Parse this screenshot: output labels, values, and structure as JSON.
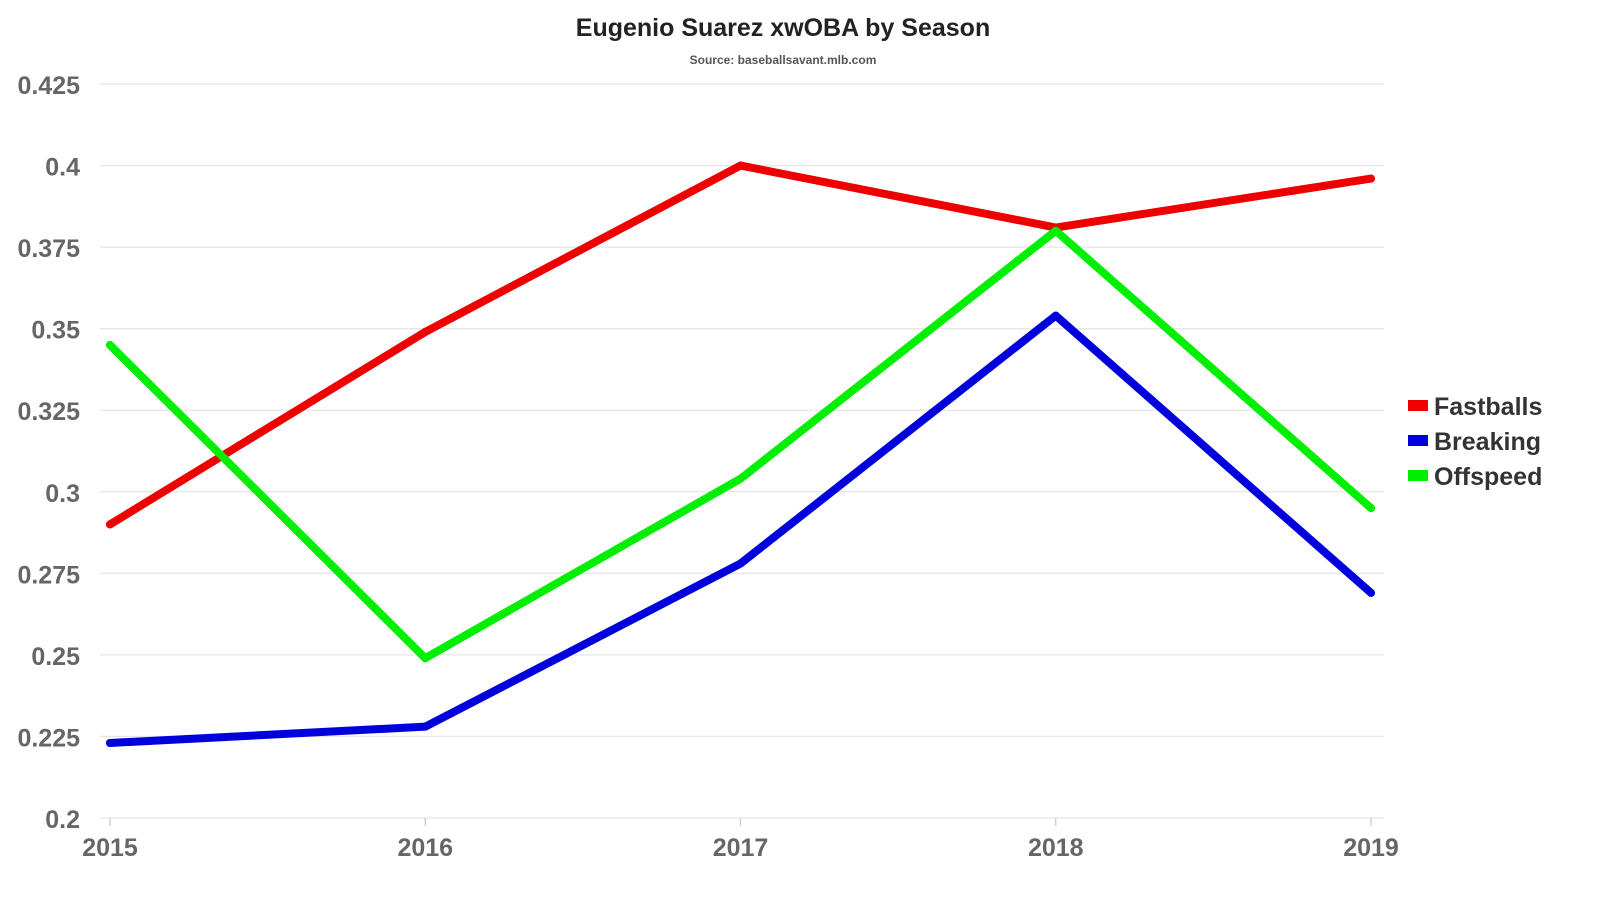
{
  "chart_data": {
    "type": "line",
    "title": "Eugenio Suarez xwOBA by Season",
    "subtitle": "Source: baseballsavant.mlb.com",
    "xlabel": "",
    "ylabel": "",
    "x": [
      "2015",
      "2016",
      "2017",
      "2018",
      "2019"
    ],
    "ylim": [
      0.2,
      0.425
    ],
    "yticks": [
      "0.2",
      "0.225",
      "0.25",
      "0.275",
      "0.3",
      "0.325",
      "0.35",
      "0.375",
      "0.4",
      "0.425"
    ],
    "ytick_values": [
      0.2,
      0.225,
      0.25,
      0.275,
      0.3,
      0.325,
      0.35,
      0.375,
      0.4,
      0.425
    ],
    "grid": true,
    "legend_position": "right",
    "series": [
      {
        "name": "Fastballs",
        "color": "#ee0000",
        "values": [
          0.29,
          0.349,
          0.4,
          0.381,
          0.396
        ]
      },
      {
        "name": "Breaking",
        "color": "#0000dd",
        "values": [
          0.223,
          0.228,
          0.278,
          0.354,
          0.269
        ]
      },
      {
        "name": "Offspeed",
        "color": "#00ee00",
        "values": [
          0.345,
          0.249,
          0.304,
          0.38,
          0.295
        ]
      }
    ]
  }
}
